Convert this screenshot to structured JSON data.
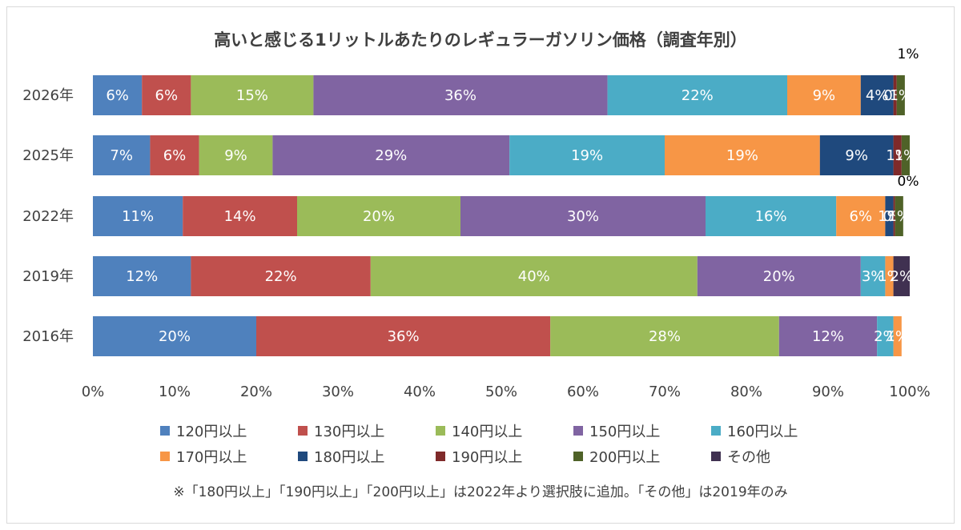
{
  "chart_data": {
    "type": "bar",
    "orientation": "horizontal",
    "stacked": "percent",
    "title": "高いと感じる1リットルあたりのレギュラーガソリン価格（調査年別）",
    "categories": [
      "2026年",
      "2025年",
      "2022年",
      "2019年",
      "2016年"
    ],
    "xlim": [
      0,
      100
    ],
    "xticks": [
      "0%",
      "10%",
      "20%",
      "30%",
      "40%",
      "50%",
      "60%",
      "70%",
      "80%",
      "90%",
      "100%"
    ],
    "grid": false,
    "legend_position": "bottom",
    "series": [
      {
        "name": "120円以上",
        "color": "#4f81bd",
        "values": [
          6,
          7,
          11,
          12,
          20
        ],
        "labels": [
          "6%",
          "7%",
          "11%",
          "12%",
          "20%"
        ]
      },
      {
        "name": "130円以上",
        "color": "#c0504d",
        "values": [
          6,
          6,
          14,
          22,
          36
        ],
        "labels": [
          "6%",
          "6%",
          "14%",
          "22%",
          "36%"
        ]
      },
      {
        "name": "140円以上",
        "color": "#9bbb59",
        "values": [
          15,
          9,
          20,
          40,
          28
        ],
        "labels": [
          "15%",
          "9%",
          "20%",
          "40%",
          "28%"
        ]
      },
      {
        "name": "150円以上",
        "color": "#8064a2",
        "values": [
          36,
          29,
          30,
          20,
          12
        ],
        "labels": [
          "36%",
          "29%",
          "30%",
          "20%",
          "12%"
        ]
      },
      {
        "name": "160円以上",
        "color": "#4bacc6",
        "values": [
          22,
          19,
          16,
          3,
          2
        ],
        "labels": [
          "22%",
          "19%",
          "16%",
          "3%",
          "2%"
        ]
      },
      {
        "name": "170円以上",
        "color": "#f79646",
        "values": [
          9,
          19,
          6,
          1,
          1
        ],
        "labels": [
          "9%",
          "19%",
          "6%",
          "1%",
          "1%"
        ]
      },
      {
        "name": "180円以上",
        "color": "#1f497d",
        "values": [
          4,
          9,
          1,
          0,
          0
        ],
        "labels": [
          "4%",
          "9%",
          "1%",
          "",
          ""
        ]
      },
      {
        "name": "190円以上",
        "color": "#7f2a2a",
        "values": [
          0.4,
          1,
          0.2,
          0,
          0
        ],
        "labels": [
          "0%",
          "1%",
          "0%",
          "",
          ""
        ]
      },
      {
        "name": "200円以上",
        "color": "#4f6228",
        "values": [
          1,
          1,
          1,
          0,
          0
        ],
        "labels": [
          "1%",
          "1%",
          "1%",
          "",
          ""
        ]
      },
      {
        "name": "その他",
        "color": "#403151",
        "values": [
          0,
          0,
          0,
          2,
          0
        ],
        "labels": [
          "",
          "",
          "",
          "2%",
          ""
        ]
      }
    ]
  },
  "note": "※「180円以上」「190円以上」「200円以上」は2022年より選択肢に追加。「その他」は2019年のみ"
}
